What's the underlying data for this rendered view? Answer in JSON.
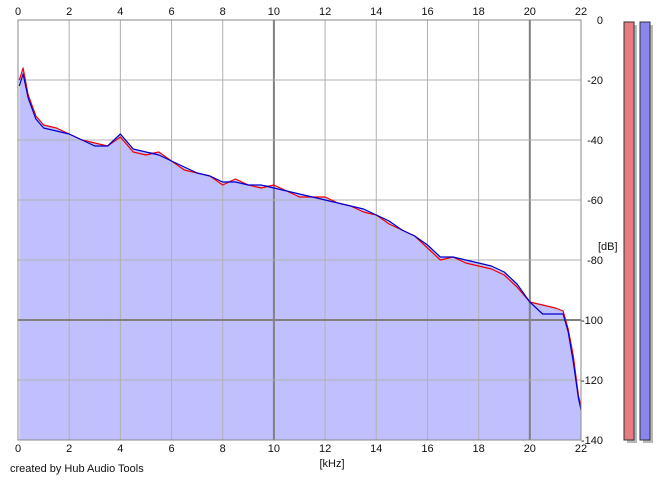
{
  "footer": {
    "credit": "created by Hub Audio Tools"
  },
  "meters": [
    {
      "channel": "left",
      "color": "#e97c82",
      "level": 0.0
    },
    {
      "channel": "right",
      "color": "#8a86f0",
      "level": 0.0
    }
  ],
  "chart_data": {
    "type": "area",
    "title": "",
    "xlabel": "[kHz]",
    "ylabel": "[dB]",
    "xlim": [
      0,
      22
    ],
    "ylim": [
      -140,
      0
    ],
    "x_ticks": [
      0,
      2,
      4,
      6,
      8,
      10,
      12,
      14,
      16,
      18,
      20,
      22
    ],
    "x_tick_labels": [
      "0",
      "2",
      "4",
      "6",
      "8",
      "10",
      "12",
      "14",
      "16",
      "18",
      "20",
      "22"
    ],
    "y_ticks": [
      0,
      -20,
      -40,
      -60,
      -80,
      -100,
      -120,
      -140
    ],
    "y_tick_labels": [
      "0",
      "-20",
      "-40",
      "-60",
      "-80",
      "-100",
      "-120",
      "-140"
    ],
    "grid": true,
    "colors": {
      "plot_bg": "#ffffff",
      "fill": "#c0c0fe",
      "left": "#ee0000",
      "right": "#0000cc",
      "grid": "#b0b0b0",
      "major_grid": "#808080"
    },
    "x": [
      0.05,
      0.2,
      0.4,
      0.7,
      1.0,
      1.5,
      2.0,
      2.5,
      3.0,
      3.5,
      4.0,
      4.5,
      5.0,
      5.5,
      6.0,
      6.5,
      7.0,
      7.5,
      8.0,
      8.5,
      9.0,
      9.5,
      10.0,
      10.5,
      11.0,
      11.5,
      12.0,
      12.5,
      13.0,
      13.5,
      14.0,
      14.5,
      15.0,
      15.5,
      16.0,
      16.5,
      17.0,
      17.5,
      18.0,
      18.5,
      19.0,
      19.5,
      20.0,
      20.5,
      21.0,
      21.3,
      21.5,
      21.7,
      21.9,
      22.0
    ],
    "series": [
      {
        "name": "",
        "color": "#ee0000",
        "values": [
          -20,
          -16,
          -25,
          -32,
          -35,
          -36,
          -38,
          -40,
          -41,
          -42,
          -39,
          -44,
          -45,
          -44,
          -47,
          -50,
          -51,
          -52,
          -55,
          -53,
          -55,
          -56,
          -55,
          -57,
          -59,
          -59,
          -59,
          -61,
          -62,
          -64,
          -65,
          -68,
          -70,
          -72,
          -76,
          -80,
          -79,
          -81,
          -82,
          -83,
          -85,
          -89,
          -94,
          -95,
          -96,
          -97,
          -103,
          -112,
          -125,
          -129
        ]
      },
      {
        "name": "",
        "color": "#0000cc",
        "values": [
          -22,
          -18,
          -26,
          -33,
          -36,
          -37,
          -38,
          -40,
          -42,
          -42,
          -38,
          -43,
          -44,
          -45,
          -47,
          -49,
          -51,
          -52,
          -54,
          -54,
          -55,
          -55,
          -56,
          -57,
          -58,
          -59,
          -60,
          -61,
          -62,
          -63,
          -65,
          -67,
          -70,
          -72,
          -75,
          -79,
          -79,
          -80,
          -81,
          -82,
          -84,
          -88,
          -94,
          -98,
          -98,
          -98,
          -104,
          -114,
          -126,
          -130
        ]
      }
    ]
  }
}
